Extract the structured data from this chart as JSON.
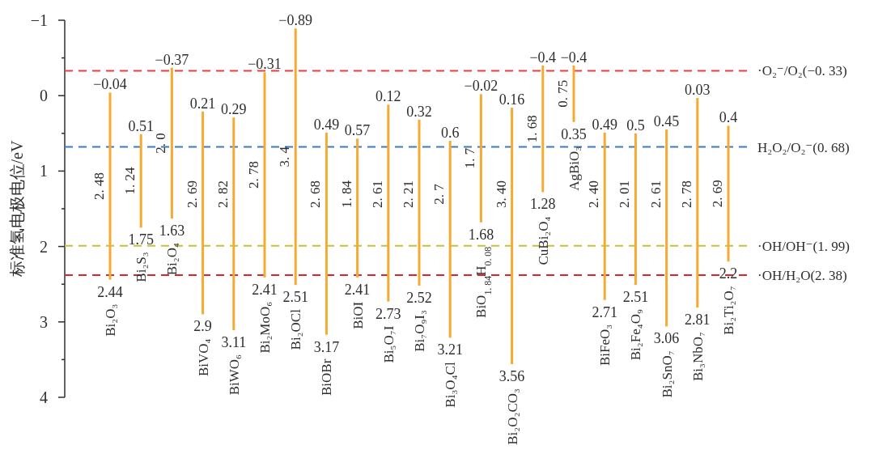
{
  "chart_data": {
    "type": "bar",
    "ylabel": "标准氢电极电位/eV",
    "categories": [
      "Bi₂O₃",
      "Bi₂S₃",
      "Bi₂O₄",
      "BiVO₄",
      "BiWO₆",
      "Bi₂MoO₆",
      "Bi₂OCl",
      "BiOBr",
      "BiOI",
      "Bi₅O₇I",
      "Bi₇O₉I₃",
      "Bi₃O₄Cl",
      "BiO$_{1. 84}$H$_{0. 08}$",
      "Bi₂O₂CO₃",
      "CuBi₂O₄",
      "AgBiO₃",
      "BiFeO₃",
      "Bi₂Fe₄O₉",
      "Bi₂SnO₇",
      "Bi₃NbO₇",
      "Bi₂Ti₂O₇"
    ],
    "base": [
      -0.04,
      0.51,
      -0.37,
      0.21,
      0.29,
      -0.31,
      -0.89,
      0.49,
      0.57,
      0.12,
      0.32,
      0.6,
      -0.02,
      0.16,
      -0.4,
      -0.4,
      0.49,
      0.5,
      0.45,
      0.03,
      0.4
    ],
    "values": [
      2.48,
      1.24,
      2.0,
      2.69,
      2.82,
      2.72,
      3.4,
      2.68,
      1.84,
      2.61,
      2.2,
      2.61,
      1.7,
      3.4,
      1.68,
      0.75,
      2.22,
      2.01,
      2.61,
      2.78,
      1.8
    ],
    "color": "#f5aa32",
    "ylim": [
      4,
      -1
    ],
    "yticks": [
      {
        "value": -1,
        "label": "−1"
      },
      {
        "value": -0.5,
        "label": null
      },
      0,
      {
        "value": 0.5,
        "label": null
      },
      1,
      {
        "value": 1.5,
        "label": null
      },
      2,
      {
        "value": 2.5,
        "label": null
      },
      3,
      {
        "value": 3.5,
        "label": null
      },
      4
    ],
    "ref_lines": [
      {
        "axis": "y",
        "value": -0.33,
        "label": "·O₂⁻/O₂(−0. 33)",
        "color": "#e6403c",
        "line_style": "dashed"
      },
      {
        "axis": "y",
        "value": 0.68,
        "label": "H₂O₂/O₂⁻(0. 68)",
        "color": "#3a7cc2",
        "line_style": "dashed"
      },
      {
        "axis": "y",
        "value": 1.99,
        "label": "·OH/OH⁻(1. 99)",
        "color": "#c8c03a",
        "line_style": "dashed"
      },
      {
        "axis": "y",
        "value": 2.38,
        "label": "·OH/H₂O(2. 38)",
        "color": "#d8282e",
        "line_style": "dashed"
      }
    ],
    "annotations": [
      {
        "text": "−0.04",
        "x": "Bi₂O₃",
        "y": -0.04
      },
      {
        "text": "2. 48",
        "x": "Bi₂O₃"
      },
      {
        "text": "2.44",
        "x": "Bi₂O₃",
        "y": 2.44
      },
      {
        "text": "0.51",
        "x": "Bi₂S₃",
        "y": 0.51
      },
      {
        "text": "1. 24",
        "x": "Bi₂S₃"
      },
      {
        "text": "1.75",
        "x": "Bi₂S₃",
        "y": 1.75
      },
      {
        "text": "−0.37",
        "x": "Bi₂O₄",
        "y": -0.37
      },
      {
        "text": "2. 0",
        "x": "Bi₂O₄"
      },
      {
        "text": "1.63",
        "x": "Bi₂O₄",
        "y": 1.63
      },
      {
        "text": "0.21",
        "x": "BiVO₄",
        "y": 0.21
      },
      {
        "text": "2. 69",
        "x": "BiVO₄"
      },
      {
        "text": "2.9",
        "x": "BiVO₄",
        "y": 2.9
      },
      {
        "text": "0.29",
        "x": "BiWO₆",
        "y": 0.29
      },
      {
        "text": "2. 82",
        "x": "BiWO₆"
      },
      {
        "text": "3.11",
        "x": "BiWO₆",
        "y": 3.11
      },
      {
        "text": "−0.31",
        "x": "Bi₂MoO₆",
        "y": -0.31
      },
      {
        "text": "2. 78",
        "x": "Bi₂MoO₆"
      },
      {
        "text": "2.41",
        "x": "Bi₂MoO₆",
        "y": 2.41
      },
      {
        "text": "−0.89",
        "x": "Bi₂OCl",
        "y": -0.89
      },
      {
        "text": "3. 4",
        "x": "Bi₂OCl"
      },
      {
        "text": "2.51",
        "x": "Bi₂OCl",
        "y": 2.51
      },
      {
        "text": "0.49",
        "x": "BiOBr",
        "y": 0.49
      },
      {
        "text": "2. 68",
        "x": "BiOBr"
      },
      {
        "text": "3.17",
        "x": "BiOBr",
        "y": 3.17
      },
      {
        "text": "0.57",
        "x": "BiOI",
        "y": 0.57
      },
      {
        "text": "1. 84",
        "x": "BiOI"
      },
      {
        "text": "2.41",
        "x": "BiOI",
        "y": 2.41
      },
      {
        "text": "0.12",
        "x": "Bi₅O₇I",
        "y": 0.12
      },
      {
        "text": "2. 61",
        "x": "Bi₅O₇I"
      },
      {
        "text": "2.73",
        "x": "Bi₅O₇I",
        "y": 2.73
      },
      {
        "text": "0.32",
        "x": "Bi₇O₉I₃",
        "y": 0.32
      },
      {
        "text": "2. 21",
        "x": "Bi₇O₉I₃"
      },
      {
        "text": "2.52",
        "x": "Bi₇O₉I₃",
        "y": 2.52
      },
      {
        "text": "0.6",
        "x": "Bi₃O₄Cl",
        "y": 0.6
      },
      {
        "text": "2. 7",
        "x": "Bi₃O₄Cl"
      },
      {
        "text": "3.21",
        "x": "Bi₃O₄Cl",
        "y": 3.21
      },
      {
        "text": "−0.02",
        "x": "BiO$_{1. 84}$H$_{0. 08}$",
        "y": -0.02
      },
      {
        "text": "1. 7",
        "x": "BiO$_{1. 84}$H$_{0. 08}$"
      },
      {
        "text": "1.68",
        "x": "BiO$_{1. 84}$H$_{0. 08}$",
        "y": 1.68
      },
      {
        "text": "0.16",
        "x": "Bi₂O₂CO₃",
        "y": 0.16
      },
      {
        "text": "3. 40",
        "x": "Bi₂O₂CO₃"
      },
      {
        "text": "3.56",
        "x": "Bi₂O₂CO₃",
        "y": 3.56
      },
      {
        "text": "−0.4",
        "x": "CuBi₂O₄",
        "y": -0.4
      },
      {
        "text": "1. 68",
        "x": "CuBi₂O₄"
      },
      {
        "text": "1.28",
        "x": "CuBi₂O₄",
        "y": 1.28
      },
      {
        "text": "−0.4",
        "x": "AgBiO₃",
        "y": -0.4
      },
      {
        "text": "0. 75",
        "x": "AgBiO₃"
      },
      {
        "text": "0.35",
        "x": "AgBiO₃",
        "y": 0.35
      },
      {
        "text": "0.49",
        "x": "BiFeO₃",
        "y": 0.49
      },
      {
        "text": "2. 40",
        "x": "BiFeO₃"
      },
      {
        "text": "2.71",
        "x": "BiFeO₃",
        "y": 2.71
      },
      {
        "text": "0.5",
        "x": "Bi₂Fe₄O₉",
        "y": 0.5
      },
      {
        "text": "2. 01",
        "x": "Bi₂Fe₄O₉"
      },
      {
        "text": "2.51",
        "x": "Bi₂Fe₄O₉",
        "y": 2.51
      },
      {
        "text": "0.45",
        "x": "Bi₂SnO₇",
        "y": 0.45
      },
      {
        "text": "2. 61",
        "x": "Bi₂SnO₇"
      },
      {
        "text": "3.06",
        "x": "Bi₂SnO₇",
        "y": 3.06
      },
      {
        "text": "0.03",
        "x": "Bi₃NbO₇",
        "y": 0.03
      },
      {
        "text": "2. 78",
        "x": "Bi₃NbO₇"
      },
      {
        "text": "2.81",
        "x": "Bi₃NbO₇",
        "y": 2.81
      },
      {
        "text": "0.4",
        "x": "Bi₂Ti₂O₇",
        "y": 0.4
      },
      {
        "text": "2. 69",
        "x": "Bi₂Ti₂O₇"
      },
      {
        "text": "2.2",
        "x": "Bi₂Ti₂O₇",
        "y": 2.2
      }
    ]
  }
}
